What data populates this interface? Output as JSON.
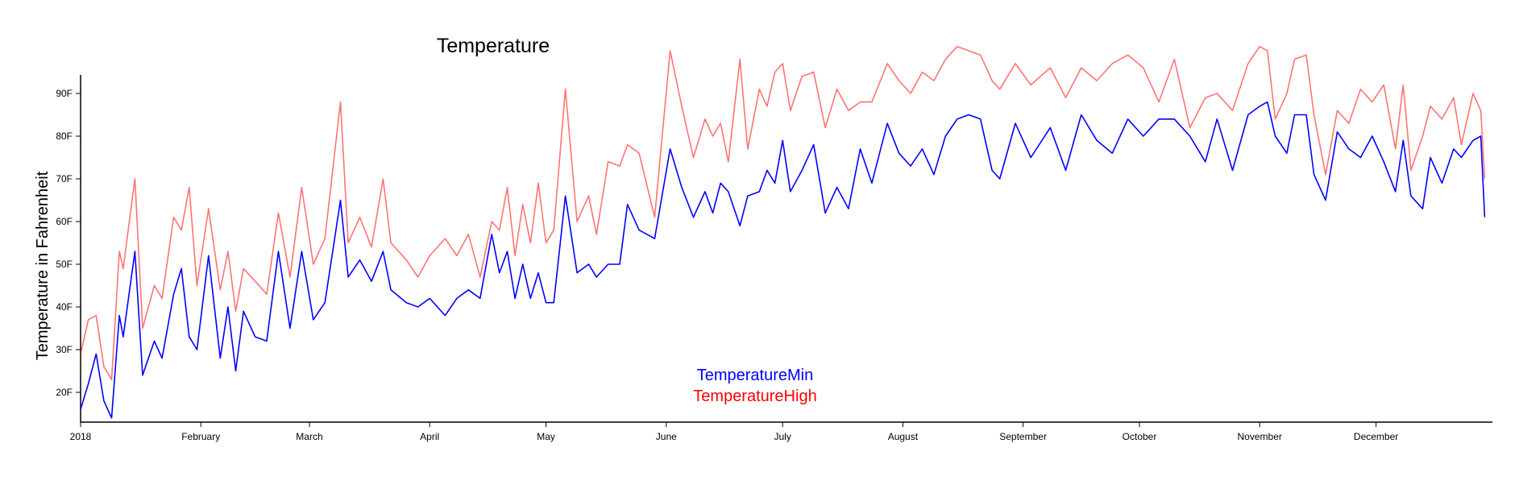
{
  "chart_data": {
    "type": "line",
    "title": "Temperature",
    "xlabel": "",
    "ylabel": "Temperature in Fahrenheit",
    "x_ticks": [
      "2018",
      "February",
      "March",
      "April",
      "May",
      "June",
      "July",
      "August",
      "September",
      "October",
      "November",
      "December"
    ],
    "y_ticks": [
      "20F",
      "30F",
      "40F",
      "50F",
      "60F",
      "70F",
      "80F",
      "90F"
    ],
    "y_unit": "F",
    "ylim": [
      13,
      94
    ],
    "xlim": [
      "2018-01-01",
      "2018-12-31"
    ],
    "grid": false,
    "legend_position": "bottom-center",
    "series": [
      {
        "name": "TemperatureMin",
        "color": "#0000ff",
        "points": [
          [
            "2018-01-01",
            16
          ],
          [
            "2018-01-03",
            22
          ],
          [
            "2018-01-05",
            29
          ],
          [
            "2018-01-07",
            18
          ],
          [
            "2018-01-09",
            14
          ],
          [
            "2018-01-11",
            38
          ],
          [
            "2018-01-12",
            33
          ],
          [
            "2018-01-15",
            53
          ],
          [
            "2018-01-17",
            24
          ],
          [
            "2018-01-20",
            32
          ],
          [
            "2018-01-22",
            28
          ],
          [
            "2018-01-25",
            43
          ],
          [
            "2018-01-27",
            49
          ],
          [
            "2018-01-29",
            33
          ],
          [
            "2018-01-31",
            30
          ],
          [
            "2018-02-03",
            52
          ],
          [
            "2018-02-06",
            28
          ],
          [
            "2018-02-08",
            40
          ],
          [
            "2018-02-10",
            25
          ],
          [
            "2018-02-12",
            39
          ],
          [
            "2018-02-15",
            33
          ],
          [
            "2018-02-18",
            32
          ],
          [
            "2018-02-21",
            53
          ],
          [
            "2018-02-24",
            35
          ],
          [
            "2018-02-27",
            53
          ],
          [
            "2018-03-02",
            37
          ],
          [
            "2018-03-05",
            41
          ],
          [
            "2018-03-09",
            65
          ],
          [
            "2018-03-11",
            47
          ],
          [
            "2018-03-14",
            51
          ],
          [
            "2018-03-17",
            46
          ],
          [
            "2018-03-20",
            53
          ],
          [
            "2018-03-22",
            44
          ],
          [
            "2018-03-26",
            41
          ],
          [
            "2018-03-29",
            40
          ],
          [
            "2018-04-01",
            42
          ],
          [
            "2018-04-05",
            38
          ],
          [
            "2018-04-08",
            42
          ],
          [
            "2018-04-11",
            44
          ],
          [
            "2018-04-14",
            42
          ],
          [
            "2018-04-17",
            57
          ],
          [
            "2018-04-19",
            48
          ],
          [
            "2018-04-21",
            53
          ],
          [
            "2018-04-23",
            42
          ],
          [
            "2018-04-25",
            50
          ],
          [
            "2018-04-27",
            42
          ],
          [
            "2018-04-29",
            48
          ],
          [
            "2018-05-01",
            41
          ],
          [
            "2018-05-03",
            41
          ],
          [
            "2018-05-06",
            66
          ],
          [
            "2018-05-09",
            48
          ],
          [
            "2018-05-12",
            50
          ],
          [
            "2018-05-14",
            47
          ],
          [
            "2018-05-17",
            50
          ],
          [
            "2018-05-20",
            50
          ],
          [
            "2018-05-22",
            64
          ],
          [
            "2018-05-25",
            58
          ],
          [
            "2018-05-29",
            56
          ],
          [
            "2018-06-02",
            77
          ],
          [
            "2018-06-05",
            68
          ],
          [
            "2018-06-08",
            61
          ],
          [
            "2018-06-11",
            67
          ],
          [
            "2018-06-13",
            62
          ],
          [
            "2018-06-15",
            69
          ],
          [
            "2018-06-17",
            67
          ],
          [
            "2018-06-20",
            59
          ],
          [
            "2018-06-22",
            66
          ],
          [
            "2018-06-25",
            67
          ],
          [
            "2018-06-27",
            72
          ],
          [
            "2018-06-29",
            69
          ],
          [
            "2018-07-01",
            79
          ],
          [
            "2018-07-03",
            67
          ],
          [
            "2018-07-06",
            72
          ],
          [
            "2018-07-09",
            78
          ],
          [
            "2018-07-12",
            62
          ],
          [
            "2018-07-15",
            68
          ],
          [
            "2018-07-18",
            63
          ],
          [
            "2018-07-21",
            77
          ],
          [
            "2018-07-24",
            69
          ],
          [
            "2018-07-28",
            83
          ],
          [
            "2018-07-31",
            76
          ],
          [
            "2018-08-03",
            73
          ],
          [
            "2018-08-06",
            77
          ],
          [
            "2018-08-09",
            71
          ],
          [
            "2018-08-12",
            80
          ],
          [
            "2018-08-15",
            84
          ],
          [
            "2018-08-18",
            85
          ],
          [
            "2018-08-21",
            84
          ],
          [
            "2018-08-24",
            72
          ],
          [
            "2018-08-26",
            70
          ],
          [
            "2018-08-30",
            83
          ],
          [
            "2018-09-03",
            75
          ],
          [
            "2018-09-08",
            82
          ],
          [
            "2018-09-12",
            72
          ],
          [
            "2018-09-16",
            85
          ],
          [
            "2018-09-20",
            79
          ],
          [
            "2018-09-24",
            76
          ],
          [
            "2018-09-28",
            84
          ],
          [
            "2018-10-02",
            80
          ],
          [
            "2018-10-06",
            84
          ],
          [
            "2018-10-10",
            84
          ],
          [
            "2018-10-14",
            80
          ],
          [
            "2018-10-18",
            74
          ],
          [
            "2018-10-21",
            84
          ],
          [
            "2018-10-25",
            72
          ],
          [
            "2018-10-29",
            85
          ],
          [
            "2018-11-01",
            87
          ],
          [
            "2018-11-03",
            88
          ],
          [
            "2018-11-05",
            80
          ],
          [
            "2018-11-08",
            76
          ],
          [
            "2018-11-10",
            85
          ],
          [
            "2018-11-13",
            85
          ],
          [
            "2018-11-15",
            71
          ],
          [
            "2018-11-18",
            65
          ],
          [
            "2018-11-21",
            81
          ],
          [
            "2018-11-24",
            77
          ],
          [
            "2018-11-27",
            75
          ],
          [
            "2018-11-30",
            80
          ],
          [
            "2018-12-03",
            74
          ],
          [
            "2018-12-06",
            67
          ],
          [
            "2018-12-08",
            79
          ],
          [
            "2018-12-10",
            66
          ],
          [
            "2018-12-13",
            63
          ],
          [
            "2018-12-15",
            75
          ],
          [
            "2018-12-18",
            69
          ],
          [
            "2018-12-21",
            77
          ],
          [
            "2018-12-23",
            75
          ],
          [
            "2018-12-26",
            79
          ],
          [
            "2018-12-28",
            80
          ],
          [
            "2018-12-29",
            61
          ]
        ]
      },
      {
        "name": "TemperatureHigh",
        "color": "#ff0000",
        "points": [
          [
            "2018-01-01",
            29
          ],
          [
            "2018-01-03",
            37
          ],
          [
            "2018-01-05",
            38
          ],
          [
            "2018-01-07",
            26
          ],
          [
            "2018-01-09",
            23
          ],
          [
            "2018-01-11",
            53
          ],
          [
            "2018-01-12",
            49
          ],
          [
            "2018-01-15",
            70
          ],
          [
            "2018-01-17",
            35
          ],
          [
            "2018-01-20",
            45
          ],
          [
            "2018-01-22",
            42
          ],
          [
            "2018-01-25",
            61
          ],
          [
            "2018-01-27",
            58
          ],
          [
            "2018-01-29",
            68
          ],
          [
            "2018-01-31",
            45
          ],
          [
            "2018-02-03",
            63
          ],
          [
            "2018-02-06",
            44
          ],
          [
            "2018-02-08",
            53
          ],
          [
            "2018-02-10",
            39
          ],
          [
            "2018-02-12",
            49
          ],
          [
            "2018-02-15",
            46
          ],
          [
            "2018-02-18",
            43
          ],
          [
            "2018-02-21",
            62
          ],
          [
            "2018-02-24",
            47
          ],
          [
            "2018-02-27",
            68
          ],
          [
            "2018-03-02",
            50
          ],
          [
            "2018-03-05",
            56
          ],
          [
            "2018-03-09",
            88
          ],
          [
            "2018-03-11",
            55
          ],
          [
            "2018-03-14",
            61
          ],
          [
            "2018-03-17",
            54
          ],
          [
            "2018-03-20",
            70
          ],
          [
            "2018-03-22",
            55
          ],
          [
            "2018-03-26",
            51
          ],
          [
            "2018-03-29",
            47
          ],
          [
            "2018-04-01",
            52
          ],
          [
            "2018-04-05",
            56
          ],
          [
            "2018-04-08",
            52
          ],
          [
            "2018-04-11",
            57
          ],
          [
            "2018-04-14",
            47
          ],
          [
            "2018-04-17",
            60
          ],
          [
            "2018-04-19",
            58
          ],
          [
            "2018-04-21",
            68
          ],
          [
            "2018-04-23",
            52
          ],
          [
            "2018-04-25",
            64
          ],
          [
            "2018-04-27",
            55
          ],
          [
            "2018-04-29",
            69
          ],
          [
            "2018-05-01",
            55
          ],
          [
            "2018-05-03",
            58
          ],
          [
            "2018-05-06",
            91
          ],
          [
            "2018-05-09",
            60
          ],
          [
            "2018-05-12",
            66
          ],
          [
            "2018-05-14",
            57
          ],
          [
            "2018-05-17",
            74
          ],
          [
            "2018-05-20",
            73
          ],
          [
            "2018-05-22",
            78
          ],
          [
            "2018-05-25",
            76
          ],
          [
            "2018-05-29",
            61
          ],
          [
            "2018-06-02",
            100
          ],
          [
            "2018-06-05",
            87
          ],
          [
            "2018-06-08",
            75
          ],
          [
            "2018-06-11",
            84
          ],
          [
            "2018-06-13",
            80
          ],
          [
            "2018-06-15",
            83
          ],
          [
            "2018-06-17",
            74
          ],
          [
            "2018-06-20",
            98
          ],
          [
            "2018-06-22",
            77
          ],
          [
            "2018-06-25",
            91
          ],
          [
            "2018-06-27",
            87
          ],
          [
            "2018-06-29",
            95
          ],
          [
            "2018-07-01",
            97
          ],
          [
            "2018-07-03",
            86
          ],
          [
            "2018-07-06",
            94
          ],
          [
            "2018-07-09",
            95
          ],
          [
            "2018-07-12",
            82
          ],
          [
            "2018-07-15",
            91
          ],
          [
            "2018-07-18",
            86
          ],
          [
            "2018-07-21",
            88
          ],
          [
            "2018-07-24",
            88
          ],
          [
            "2018-07-28",
            97
          ],
          [
            "2018-07-31",
            93
          ],
          [
            "2018-08-03",
            90
          ],
          [
            "2018-08-06",
            95
          ],
          [
            "2018-08-09",
            93
          ],
          [
            "2018-08-12",
            98
          ],
          [
            "2018-08-15",
            101
          ],
          [
            "2018-08-18",
            100
          ],
          [
            "2018-08-21",
            99
          ],
          [
            "2018-08-24",
            93
          ],
          [
            "2018-08-26",
            91
          ],
          [
            "2018-08-30",
            97
          ],
          [
            "2018-09-03",
            92
          ],
          [
            "2018-09-08",
            96
          ],
          [
            "2018-09-12",
            89
          ],
          [
            "2018-09-16",
            96
          ],
          [
            "2018-09-20",
            93
          ],
          [
            "2018-09-24",
            97
          ],
          [
            "2018-09-28",
            99
          ],
          [
            "2018-10-02",
            96
          ],
          [
            "2018-10-06",
            88
          ],
          [
            "2018-10-10",
            98
          ],
          [
            "2018-10-14",
            82
          ],
          [
            "2018-10-18",
            89
          ],
          [
            "2018-10-21",
            90
          ],
          [
            "2018-10-25",
            86
          ],
          [
            "2018-10-29",
            97
          ],
          [
            "2018-11-01",
            101
          ],
          [
            "2018-11-03",
            100
          ],
          [
            "2018-11-05",
            84
          ],
          [
            "2018-11-08",
            90
          ],
          [
            "2018-11-10",
            98
          ],
          [
            "2018-11-13",
            99
          ],
          [
            "2018-11-15",
            85
          ],
          [
            "2018-11-18",
            71
          ],
          [
            "2018-11-21",
            86
          ],
          [
            "2018-11-24",
            83
          ],
          [
            "2018-11-27",
            91
          ],
          [
            "2018-11-30",
            88
          ],
          [
            "2018-12-03",
            92
          ],
          [
            "2018-12-06",
            77
          ],
          [
            "2018-12-08",
            92
          ],
          [
            "2018-12-10",
            72
          ],
          [
            "2018-12-13",
            80
          ],
          [
            "2018-12-15",
            87
          ],
          [
            "2018-12-18",
            84
          ],
          [
            "2018-12-21",
            89
          ],
          [
            "2018-12-23",
            78
          ],
          [
            "2018-12-26",
            90
          ],
          [
            "2018-12-28",
            86
          ],
          [
            "2018-12-29",
            70
          ]
        ]
      }
    ]
  }
}
